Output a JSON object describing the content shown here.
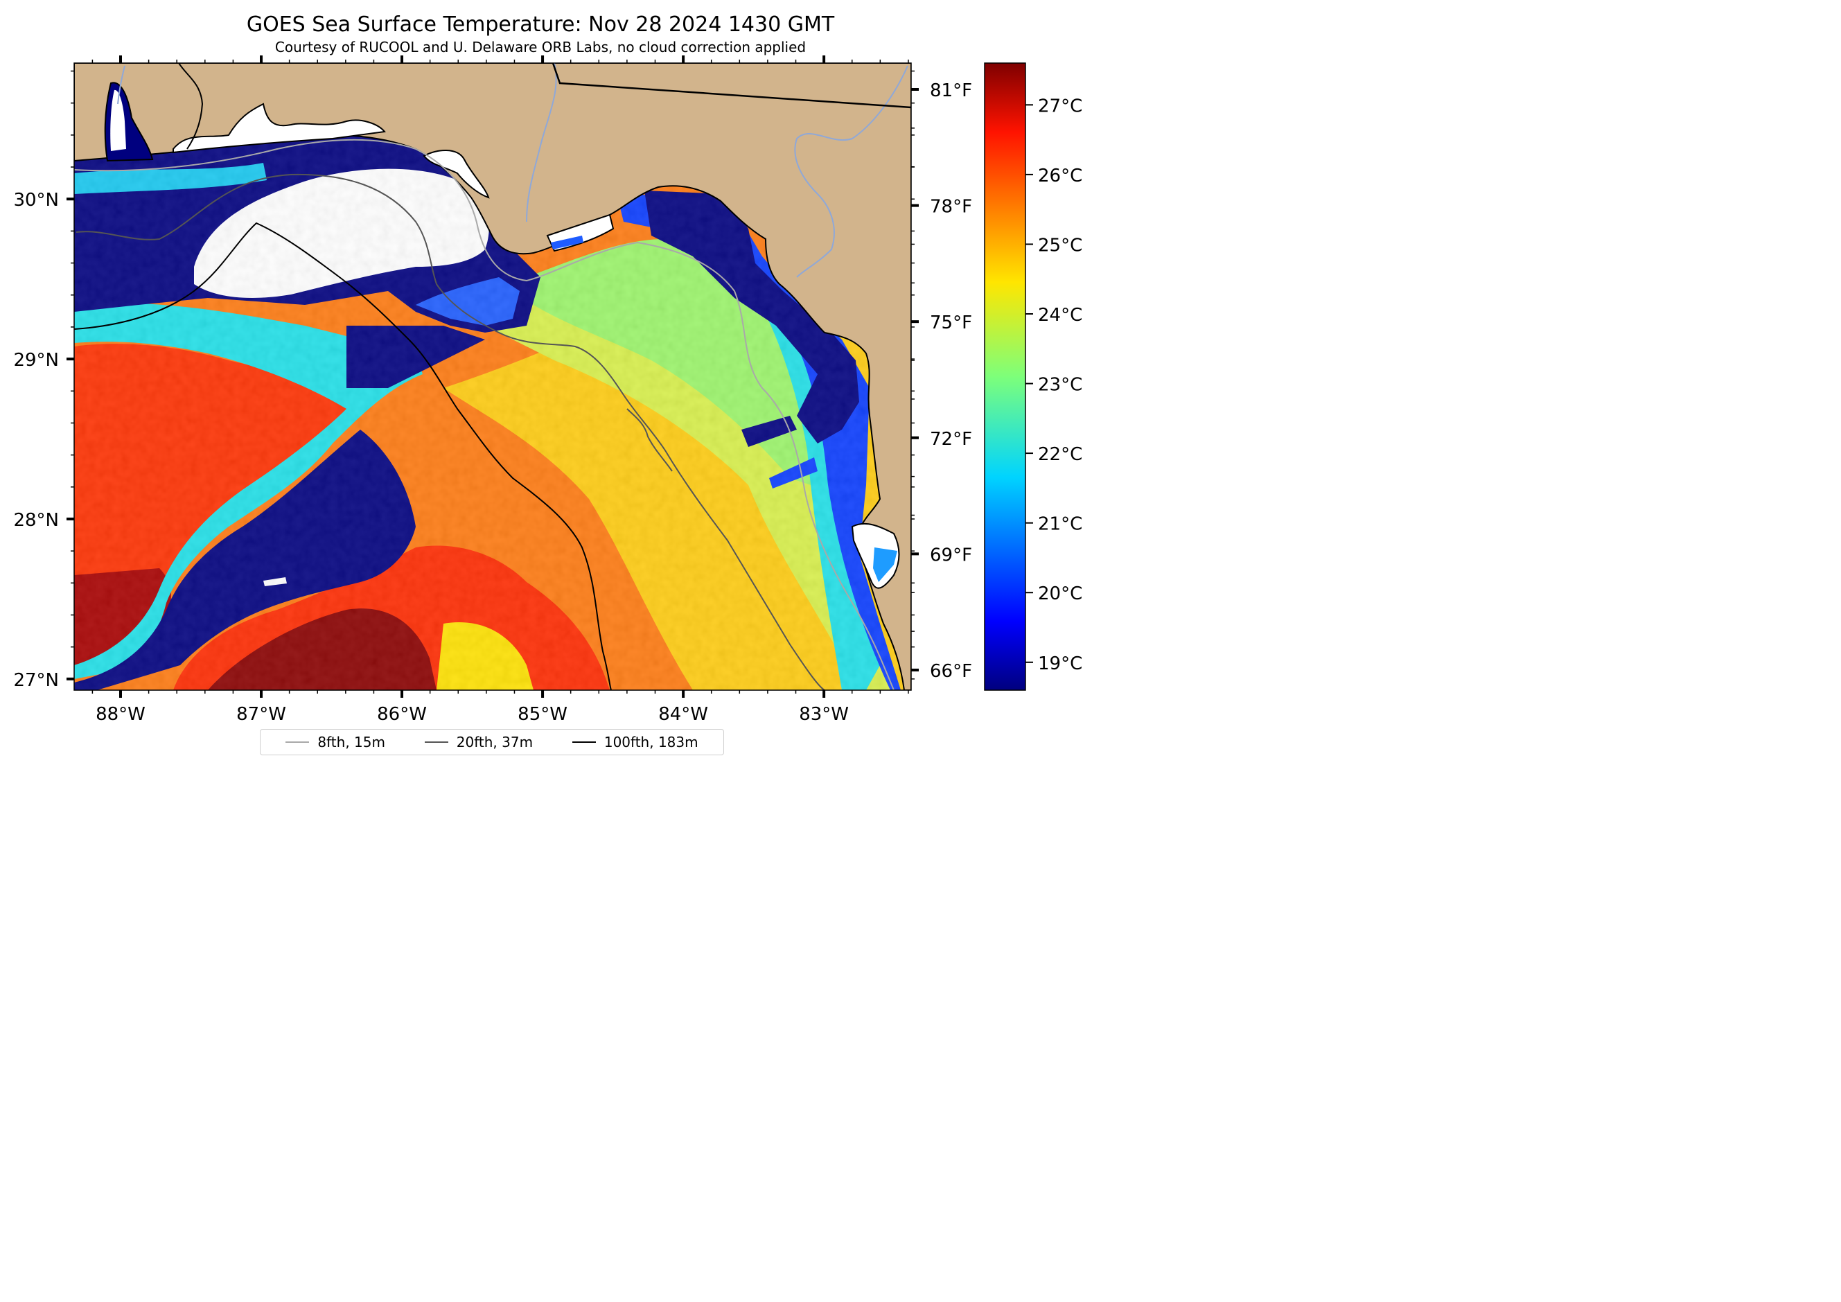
{
  "title": "GOES Sea Surface Temperature: Nov 28 2024 1430 GMT",
  "subtitle": "Courtesy of RUCOOL and U. Delaware ORB Labs, no cloud correction applied",
  "map": {
    "lon_range": [
      -88.33,
      -82.38
    ],
    "lat_range": [
      26.93,
      30.85
    ],
    "lon_ticks": [
      "88°W",
      "87°W",
      "86°W",
      "85°W",
      "84°W",
      "83°W"
    ],
    "lat_ticks": [
      "27°N",
      "28°N",
      "29°N",
      "30°N"
    ],
    "right_ticks_fahrenheit": [
      "66°F",
      "69°F",
      "72°F",
      "75°F",
      "78°F",
      "81°F"
    ],
    "land_color": "#d2b48c",
    "cloud_mask_color": "#ffffff",
    "colormap": "jet"
  },
  "colorbar": {
    "range_celsius": [
      18.6,
      27.6
    ],
    "tick_labels": [
      "19°C",
      "20°C",
      "21°C",
      "22°C",
      "23°C",
      "24°C",
      "25°C",
      "26°C",
      "27°C"
    ]
  },
  "legend": {
    "items": [
      {
        "label": "8fth, 15m",
        "color": "#a9a9a9"
      },
      {
        "label": "20fth, 37m",
        "color": "#555555"
      },
      {
        "label": "100fth, 183m",
        "color": "#000000"
      }
    ]
  }
}
